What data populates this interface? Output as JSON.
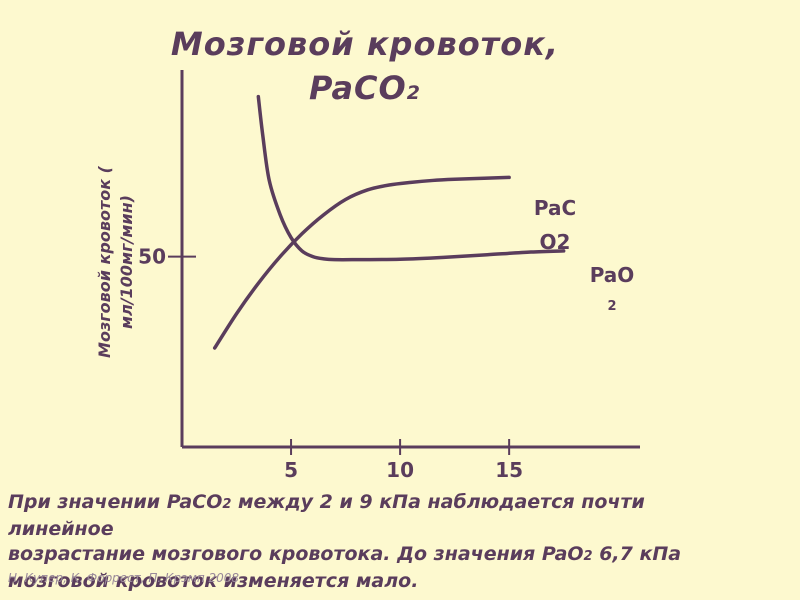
{
  "slide": {
    "title_line1": "Мозговой кровоток,",
    "title_line2_main": "PaCO",
    "title_line2_sub": "2",
    "text_line1_pre": "При значении PaCO",
    "text_line1_sub": "2",
    "text_line1_post": " между 2 и 9 кПа наблюдается почти",
    "text_line2": "линейное",
    "text_line3_pre": "возрастание мозгового кровотока. До значения PaO",
    "text_line3_sub": "2",
    "text_line3_post": " 6,7 кПа",
    "text_line4": "мозговой кровоток изменяется мало.",
    "credit": "Н. Купер, К. Форрест, П. Крэмп 2008"
  },
  "colors": {
    "background": "#fdf9cf",
    "text": "#5a3d5c",
    "curve": "#5a3d5c",
    "credit": "#9a8a9a"
  },
  "chart_data": {
    "type": "line",
    "title": "Мозговой кровоток, PaCO2",
    "xlabel": "",
    "ylabel": "Мозговой кровоток ( мл/100мг/мин)",
    "x_ticks": [
      5,
      10,
      15
    ],
    "y_ticks": [
      50
    ],
    "xlim": [
      0,
      21
    ],
    "ylim": [
      0,
      99
    ],
    "series": [
      {
        "name": "PaCO2",
        "label_lines": [
          "PaC",
          "O2"
        ],
        "x": [
          1.5,
          2.5,
          3.5,
          4.5,
          5.5,
          6.5,
          7.5,
          8.5,
          9.5,
          10.5,
          11.5,
          12.5,
          13.5,
          14.5,
          15.0
        ],
        "y": [
          26,
          35,
          43,
          50,
          56,
          61,
          65,
          67.5,
          68.8,
          69.5,
          70,
          70.3,
          70.5,
          70.7,
          70.8
        ]
      },
      {
        "name": "PaO2",
        "label_lines": [
          "PaO",
          "2"
        ],
        "x": [
          3.5,
          3.7,
          4.0,
          4.5,
          5.0,
          5.5,
          6.0,
          6.5,
          7.0,
          8.0,
          10.0,
          12.0,
          14.0,
          16.0,
          17.5
        ],
        "y": [
          92,
          82,
          70,
          61,
          55,
          51.5,
          50,
          49.4,
          49.2,
          49.2,
          49.3,
          49.8,
          50.5,
          51.2,
          51.5
        ]
      }
    ]
  }
}
